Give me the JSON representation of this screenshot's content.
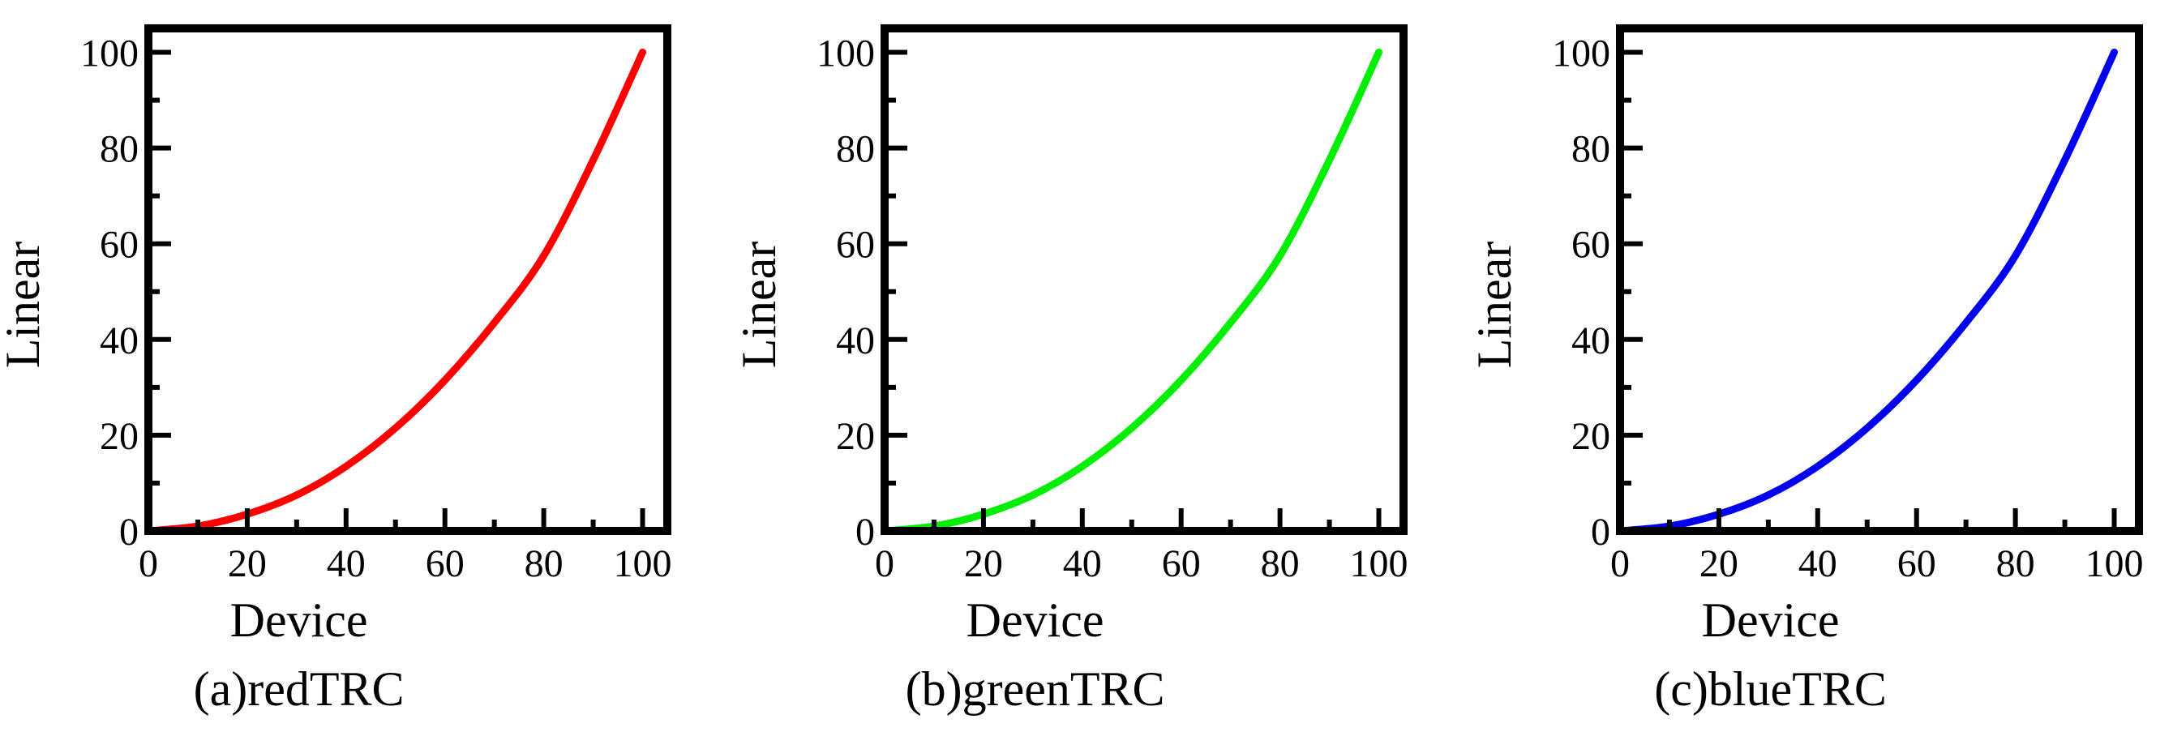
{
  "chart_data": [
    {
      "type": "line",
      "caption": "(a)redTRC",
      "xlabel": "Device",
      "ylabel": "Linear",
      "xlim": [
        0,
        105
      ],
      "ylim": [
        0,
        105
      ],
      "xticks": [
        0,
        20,
        40,
        60,
        80,
        100
      ],
      "yticks": [
        0,
        20,
        40,
        60,
        80,
        100
      ],
      "grid": false,
      "series": [
        {
          "color": "#ff0000",
          "x": [
            0,
            10,
            20,
            30,
            40,
            50,
            60,
            70,
            80,
            90,
            100
          ],
          "y": [
            0,
            1.0,
            3.5,
            7.5,
            13.5,
            21.5,
            31.5,
            43.5,
            57.5,
            77.5,
            100
          ]
        }
      ]
    },
    {
      "type": "line",
      "caption": "(b)greenTRC",
      "xlabel": "Device",
      "ylabel": "Linear",
      "xlim": [
        0,
        105
      ],
      "ylim": [
        0,
        105
      ],
      "xticks": [
        0,
        20,
        40,
        60,
        80,
        100
      ],
      "yticks": [
        0,
        20,
        40,
        60,
        80,
        100
      ],
      "grid": false,
      "series": [
        {
          "color": "#00ee00",
          "x": [
            0,
            10,
            20,
            30,
            40,
            50,
            60,
            70,
            80,
            90,
            100
          ],
          "y": [
            0,
            1.0,
            3.5,
            7.5,
            13.5,
            21.5,
            31.5,
            43.5,
            57.5,
            77.5,
            100
          ]
        }
      ]
    },
    {
      "type": "line",
      "caption": "(c)blueTRC",
      "xlabel": "Device",
      "ylabel": "Linear",
      "xlim": [
        0,
        105
      ],
      "ylim": [
        0,
        105
      ],
      "xticks": [
        0,
        20,
        40,
        60,
        80,
        100
      ],
      "yticks": [
        0,
        20,
        40,
        60,
        80,
        100
      ],
      "grid": false,
      "series": [
        {
          "color": "#0000ee",
          "x": [
            0,
            10,
            20,
            30,
            40,
            50,
            60,
            70,
            80,
            90,
            100
          ],
          "y": [
            0,
            1.0,
            3.5,
            7.5,
            13.5,
            21.5,
            31.5,
            43.5,
            57.5,
            77.5,
            100
          ]
        }
      ]
    }
  ]
}
